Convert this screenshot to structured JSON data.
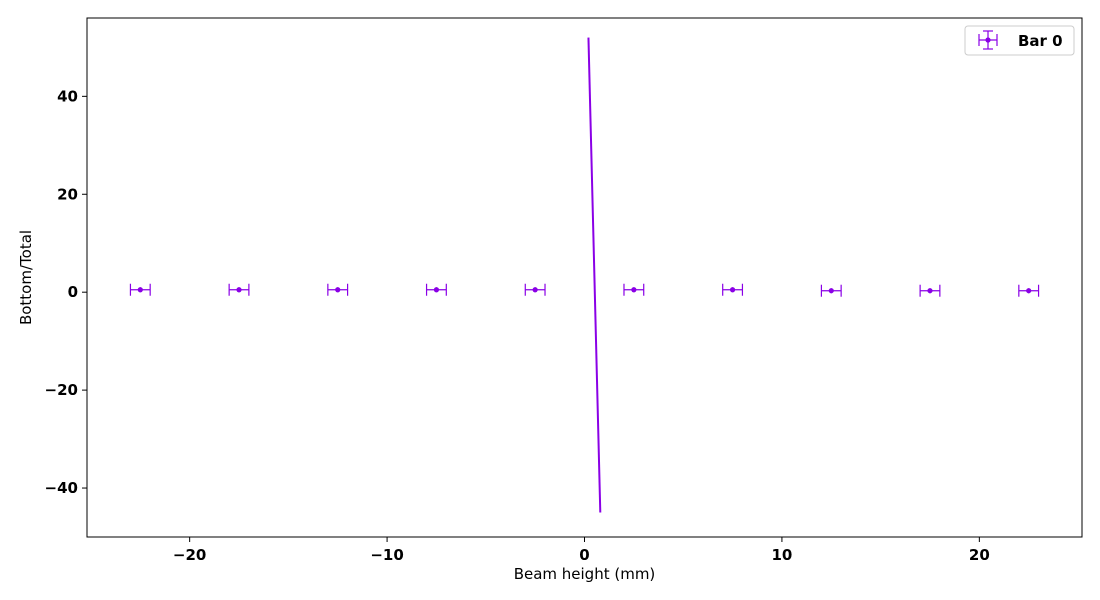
{
  "chart_data": {
    "type": "scatter",
    "xlabel": "Beam height (mm)",
    "ylabel": "Bottom/Total",
    "xlim": [
      -25.2,
      25.2
    ],
    "ylim": [
      -50,
      56
    ],
    "xticks": [
      -20,
      -10,
      0,
      10,
      20
    ],
    "yticks": [
      -40,
      -20,
      0,
      20,
      40
    ],
    "xtick_labels": [
      "−20",
      "−10",
      "0",
      "10",
      "20"
    ],
    "ytick_labels": [
      "−40",
      "−20",
      "0",
      "20",
      "40"
    ],
    "grid": false,
    "legend_position": "top-right",
    "series": [
      {
        "name": "Bar 0",
        "color": "#8a00e6",
        "marker": "circle",
        "x": [
          -22.5,
          -17.5,
          -12.5,
          -7.5,
          -2.5,
          2.5,
          7.5,
          12.5,
          17.5,
          22.5
        ],
        "y": [
          0.5,
          0.5,
          0.5,
          0.5,
          0.5,
          0.5,
          0.5,
          0.3,
          0.3,
          0.3
        ],
        "xerr": 0.5,
        "yerr": 0.5
      }
    ],
    "lines": [
      {
        "color": "#8a00e6",
        "x": [
          0.2,
          0.8
        ],
        "y": [
          52,
          -45
        ]
      }
    ]
  }
}
